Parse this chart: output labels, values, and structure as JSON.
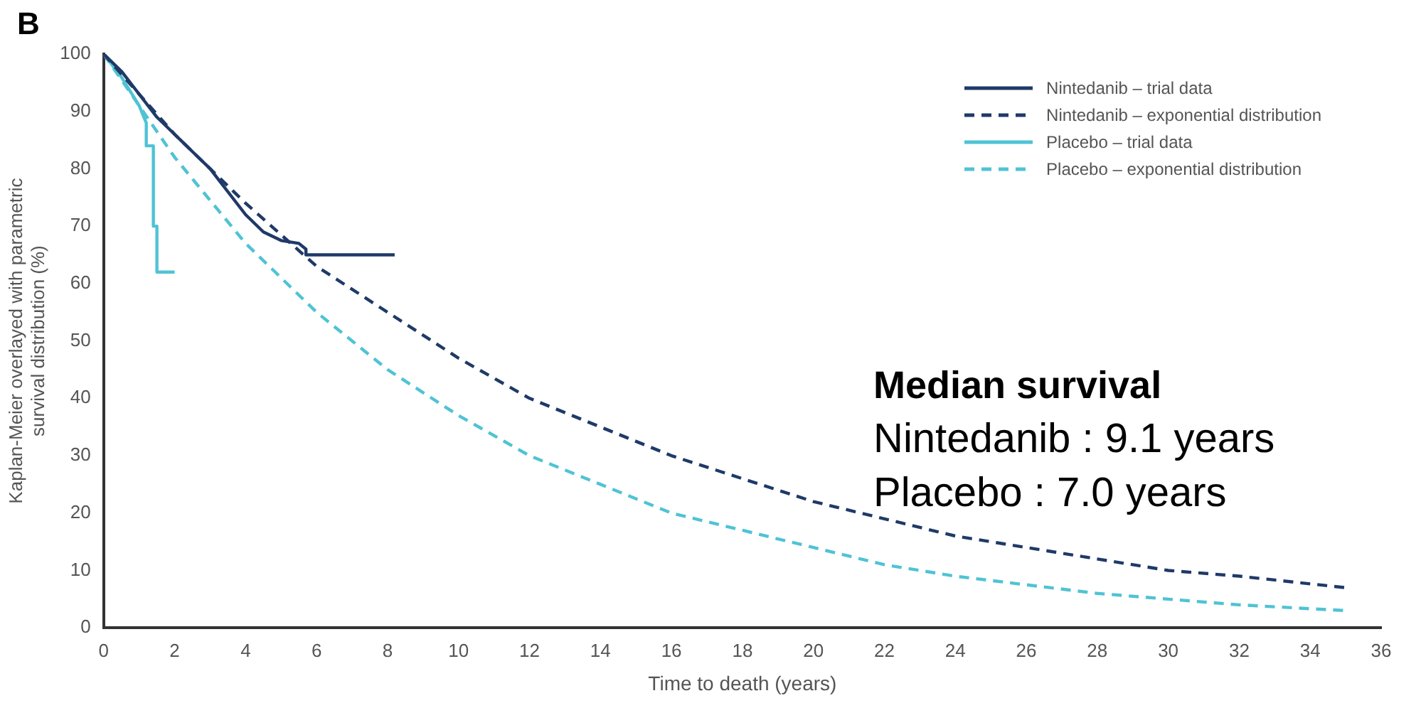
{
  "chart_data": {
    "type": "line",
    "xlabel": "Time to death (years)",
    "ylabel": "Kaplan-Meier overlayed with parametric survival distribution (%)",
    "xlim": [
      0,
      36
    ],
    "xticks": [
      0,
      2,
      4,
      6,
      8,
      10,
      12,
      14,
      16,
      18,
      20,
      22,
      24,
      26,
      28,
      30,
      32,
      34,
      36
    ],
    "ylim": [
      0,
      100
    ],
    "yticks": [
      0,
      10,
      20,
      30,
      40,
      50,
      60,
      70,
      80,
      90,
      100
    ],
    "grid": false,
    "legend": "top right",
    "marker": "none",
    "annotations": [
      "B",
      "Median survival",
      "Nintedanib : 9.1 years",
      "Placebo : 7.0 years"
    ],
    "series": [
      {
        "name": "Nintedanib – trial data",
        "color": "#1f3a68",
        "line_style": "solid",
        "x": [
          0,
          0.5,
          1,
          1.5,
          2,
          2.5,
          3,
          3.5,
          4,
          4.5,
          5,
          5.5,
          5.7,
          5.7,
          6,
          8.2
        ],
        "values": [
          100,
          97,
          93,
          89,
          86,
          83,
          80,
          76,
          72,
          69,
          67.5,
          67,
          66,
          65,
          65,
          65
        ]
      },
      {
        "name": "Nintedanib – exponential distribution",
        "color": "#1f3a68",
        "line_style": "dashed",
        "x": [
          0,
          2,
          4,
          6,
          8,
          10,
          12,
          14,
          16,
          18,
          20,
          22,
          24,
          26,
          28,
          30,
          32,
          35
        ],
        "values": [
          100,
          86,
          74,
          63,
          55,
          47,
          40,
          35,
          30,
          26,
          22,
          19,
          16,
          14,
          12,
          10,
          9,
          7
        ]
      },
      {
        "name": "Placebo – trial data",
        "color": "#4fc3d4",
        "line_style": "solid",
        "x": [
          0,
          0.5,
          1,
          1.2,
          1.2,
          1.4,
          1.4,
          1.5,
          1.5,
          2
        ],
        "values": [
          100,
          96,
          91,
          88,
          84,
          84,
          70,
          70,
          62,
          62
        ]
      },
      {
        "name": "Placebo – exponential distribution",
        "color": "#4fc3d4",
        "line_style": "dashed",
        "x": [
          0,
          2,
          4,
          6,
          8,
          10,
          12,
          14,
          16,
          18,
          20,
          22,
          24,
          26,
          28,
          30,
          32,
          35
        ],
        "values": [
          100,
          82,
          67,
          55,
          45,
          37,
          30,
          25,
          20,
          17,
          14,
          11,
          9,
          7.5,
          6,
          5,
          4,
          3
        ]
      }
    ]
  }
}
